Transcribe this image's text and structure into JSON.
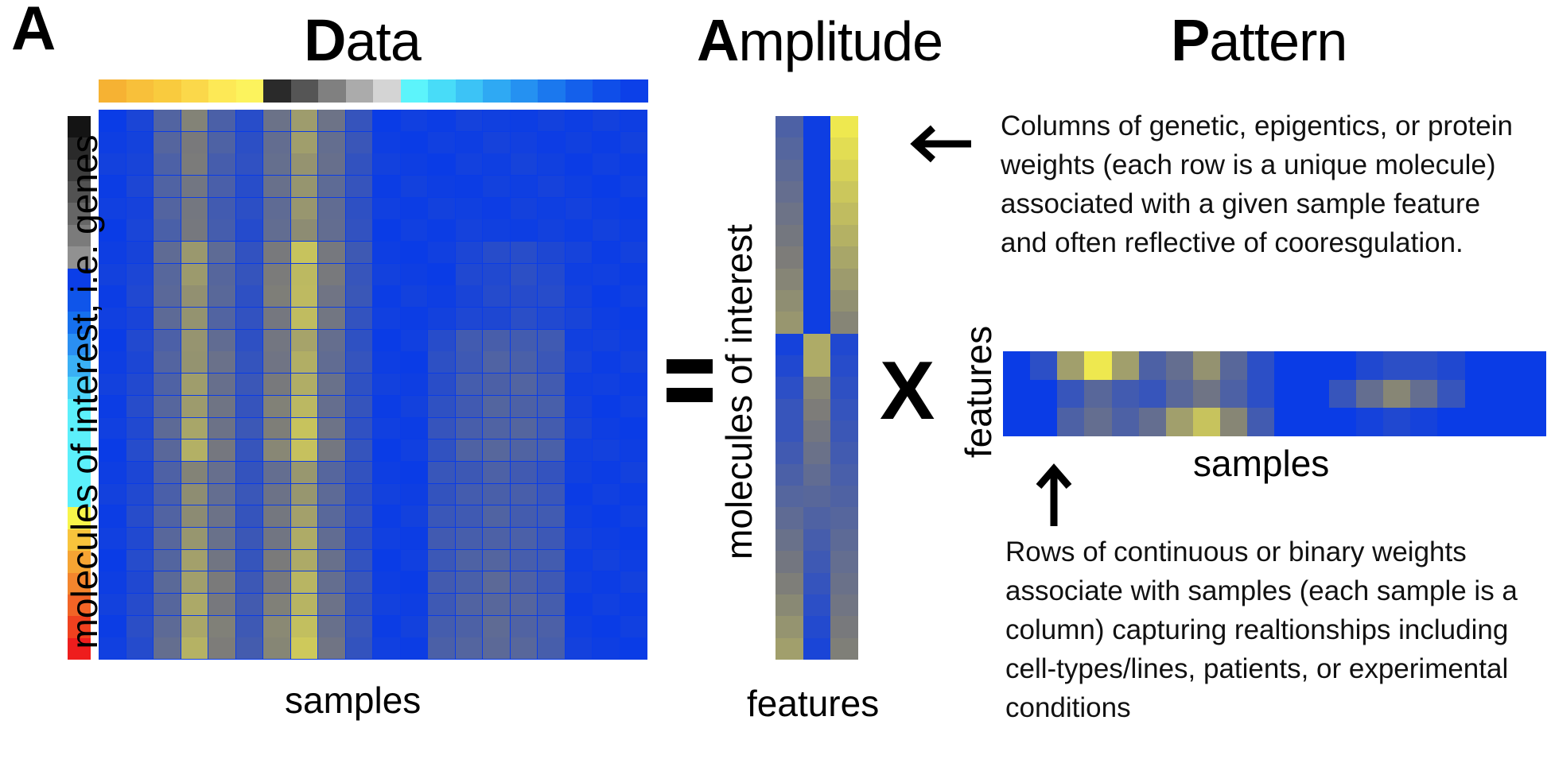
{
  "panel_label": "A",
  "titles": {
    "data": {
      "cap": "D",
      "rest": "ata"
    },
    "amplitude": {
      "cap": "A",
      "rest": "mplitude"
    },
    "pattern": {
      "cap": "P",
      "rest": "attern"
    }
  },
  "data_panel": {
    "xlabel": "samples",
    "ylabel": "molecules of interest, i.e. genes",
    "sample_colors": [
      "#f6b233",
      "#f8c03a",
      "#f9cb3e",
      "#fbd84a",
      "#fde956",
      "#fcf35d",
      "#2a2a2a",
      "#555555",
      "#808080",
      "#ababab",
      "#d4d4d4",
      "#5cf4fb",
      "#48dcf8",
      "#3cc3f6",
      "#2fa9f3",
      "#2591f1",
      "#1b78ee",
      "#1460eb",
      "#0f4ee9",
      "#0c40e8"
    ],
    "gene_colors": [
      "#141414",
      "#2a2a2a",
      "#3e3e3e",
      "#525252",
      "#666666",
      "#7b7b7b",
      "#919191",
      "#0b3ee8",
      "#0f55ea",
      "#1670ee",
      "#2a8ff2",
      "#3ab0f5",
      "#4dd2f8",
      "#5cf0fb",
      "#5cf0fb",
      "#5cf0fb",
      "#5cf0fb",
      "#5cf0fb",
      "#f7f54a",
      "#f8c43c",
      "#f6a433",
      "#f4852d",
      "#f26426",
      "#f0411f",
      "#ee1d1d"
    ]
  },
  "amplitude_panel": {
    "xlabel": "features",
    "ylabel": "molecules of interest"
  },
  "pattern_panel": {
    "xlabel": "samples",
    "ylabel": "features"
  },
  "operators": {
    "equals": "=",
    "times": "X"
  },
  "annotations": {
    "columns_text": "Columns of genetic, epigentics, or protein weights (each row is a unique molecule) associated with a given sample feature and often reflective of cooresgulation.",
    "rows_text": "Rows of continuous or binary weights associate with samples (each sample is a column) capturing realtionships including cell-types/lines, patients, or experimental conditions"
  },
  "colors": {
    "low": "#0a3ce6",
    "mid": "#7a7a7a",
    "high": "#fbf44a"
  }
}
